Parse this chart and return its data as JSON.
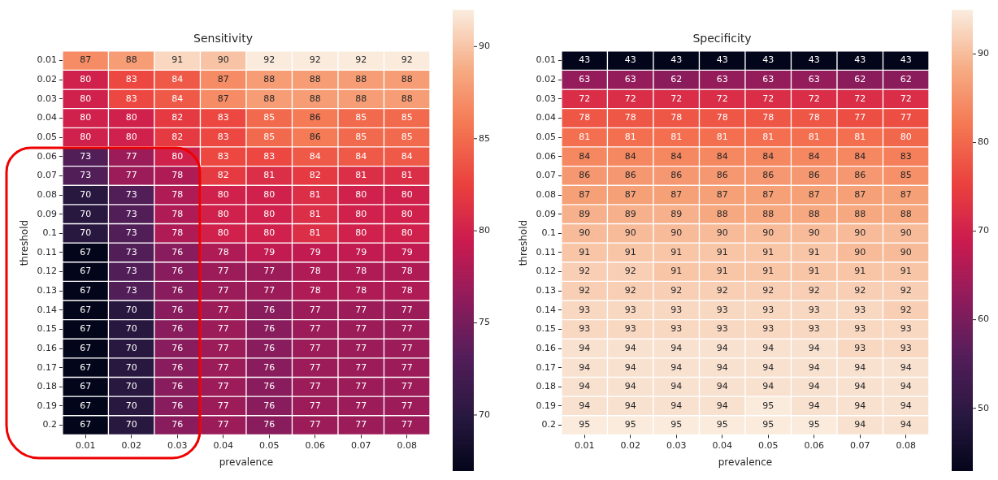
{
  "chart_data": [
    {
      "type": "heatmap",
      "title": "Sensitivity",
      "xlabel": "prevalence",
      "ylabel": "threshold",
      "categories": [
        "0.01",
        "0.02",
        "0.03",
        "0.04",
        "0.05",
        "0.06",
        "0.07",
        "0.08"
      ],
      "y_categories": [
        "0.01",
        "0.02",
        "0.03",
        "0.04",
        "0.05",
        "0.06",
        "0.07",
        "0.08",
        "0.09",
        "0.1",
        "0.11",
        "0.12",
        "0.13",
        "0.14",
        "0.15",
        "0.16",
        "0.17",
        "0.18",
        "0.19",
        "0.2"
      ],
      "cells": [
        [
          87,
          88,
          91,
          90,
          92,
          92,
          92,
          92
        ],
        [
          80,
          83,
          84,
          87,
          88,
          88,
          88,
          88
        ],
        [
          80,
          83,
          84,
          87,
          88,
          88,
          88,
          88
        ],
        [
          80,
          80,
          82,
          83,
          85,
          86,
          85,
          85
        ],
        [
          80,
          80,
          82,
          83,
          85,
          86,
          85,
          85
        ],
        [
          73,
          77,
          80,
          83,
          83,
          84,
          84,
          84
        ],
        [
          73,
          77,
          78,
          82,
          81,
          82,
          81,
          81
        ],
        [
          70,
          73,
          78,
          80,
          80,
          81,
          80,
          80
        ],
        [
          70,
          73,
          78,
          80,
          80,
          81,
          80,
          80
        ],
        [
          70,
          73,
          78,
          80,
          80,
          81,
          80,
          80
        ],
        [
          67,
          73,
          76,
          78,
          79,
          79,
          79,
          79
        ],
        [
          67,
          73,
          76,
          77,
          77,
          78,
          78,
          78
        ],
        [
          67,
          73,
          76,
          77,
          77,
          78,
          78,
          78
        ],
        [
          67,
          70,
          76,
          77,
          76,
          77,
          77,
          77
        ],
        [
          67,
          70,
          76,
          77,
          76,
          77,
          77,
          77
        ],
        [
          67,
          70,
          76,
          77,
          76,
          77,
          77,
          77
        ],
        [
          67,
          70,
          76,
          77,
          76,
          77,
          77,
          77
        ],
        [
          67,
          70,
          76,
          77,
          76,
          77,
          77,
          77
        ],
        [
          67,
          70,
          76,
          77,
          76,
          77,
          77,
          77
        ],
        [
          67,
          70,
          76,
          77,
          76,
          77,
          77,
          77
        ]
      ],
      "clim": [
        67,
        92
      ],
      "cticks": [
        70,
        75,
        80,
        85,
        90
      ],
      "data_labels": true
    },
    {
      "type": "heatmap",
      "title": "Specificity",
      "xlabel": "prevalence",
      "ylabel": "threshold",
      "categories": [
        "0.01",
        "0.02",
        "0.03",
        "0.04",
        "0.05",
        "0.06",
        "0.07",
        "0.08"
      ],
      "y_categories": [
        "0.01",
        "0.02",
        "0.03",
        "0.04",
        "0.05",
        "0.06",
        "0.07",
        "0.08",
        "0.09",
        "0.1",
        "0.11",
        "0.12",
        "0.13",
        "0.14",
        "0.15",
        "0.16",
        "0.17",
        "0.18",
        "0.19",
        "0.2"
      ],
      "cells": [
        [
          43,
          43,
          43,
          43,
          43,
          43,
          43,
          43
        ],
        [
          63,
          63,
          62,
          63,
          63,
          63,
          62,
          62
        ],
        [
          72,
          72,
          72,
          72,
          72,
          72,
          72,
          72
        ],
        [
          78,
          78,
          78,
          78,
          78,
          78,
          77,
          77
        ],
        [
          81,
          81,
          81,
          81,
          81,
          81,
          81,
          80
        ],
        [
          84,
          84,
          84,
          84,
          84,
          84,
          84,
          83
        ],
        [
          86,
          86,
          86,
          86,
          86,
          86,
          86,
          85
        ],
        [
          87,
          87,
          87,
          87,
          87,
          87,
          87,
          87
        ],
        [
          89,
          89,
          89,
          88,
          88,
          88,
          88,
          88
        ],
        [
          90,
          90,
          90,
          90,
          90,
          90,
          90,
          90
        ],
        [
          91,
          91,
          91,
          91,
          91,
          91,
          90,
          90
        ],
        [
          92,
          92,
          91,
          91,
          91,
          91,
          91,
          91
        ],
        [
          92,
          92,
          92,
          92,
          92,
          92,
          92,
          92
        ],
        [
          93,
          93,
          93,
          93,
          93,
          93,
          93,
          92
        ],
        [
          93,
          93,
          93,
          93,
          93,
          93,
          93,
          93
        ],
        [
          94,
          94,
          94,
          94,
          94,
          94,
          93,
          93
        ],
        [
          94,
          94,
          94,
          94,
          94,
          94,
          94,
          94
        ],
        [
          94,
          94,
          94,
          94,
          94,
          94,
          94,
          94
        ],
        [
          94,
          94,
          94,
          94,
          95,
          94,
          94,
          94
        ],
        [
          95,
          95,
          95,
          95,
          95,
          95,
          94,
          94
        ]
      ],
      "clim": [
        43,
        95
      ],
      "cticks": [
        50,
        60,
        70,
        80,
        90
      ],
      "data_labels": true
    }
  ]
}
